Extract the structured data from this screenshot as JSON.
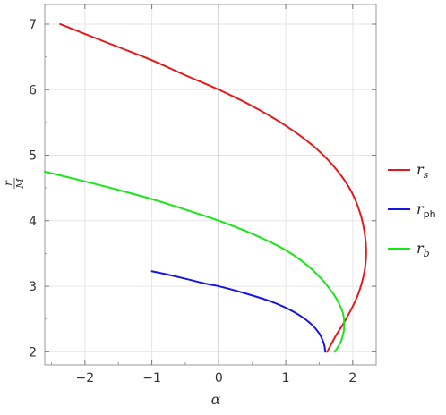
{
  "chart_data": {
    "type": "line",
    "title": "",
    "xlabel": "α",
    "ylabel_num": "r",
    "ylabel_den": "M",
    "xlim": [
      -2.6,
      2.35
    ],
    "ylim": [
      1.8,
      7.3
    ],
    "xticks": [
      -2,
      -1,
      0,
      1,
      2
    ],
    "yticks": [
      2,
      3,
      4,
      5,
      6,
      7
    ],
    "x_tick_labels": [
      "−2",
      "−1",
      "0",
      "1",
      "2"
    ],
    "y_tick_labels": [
      "2",
      "3",
      "4",
      "5",
      "6",
      "7"
    ],
    "grid": true,
    "legend_position": "right",
    "series": [
      {
        "legend_base": "r",
        "legend_sub": "s",
        "sub_italic": true,
        "color": "#e3191a",
        "points": [
          [
            -2.37,
            7.0
          ],
          [
            -2.0,
            6.85
          ],
          [
            -1.5,
            6.65
          ],
          [
            -1.0,
            6.45
          ],
          [
            -0.5,
            6.22
          ],
          [
            0.0,
            6.0
          ],
          [
            0.5,
            5.75
          ],
          [
            1.0,
            5.45
          ],
          [
            1.4,
            5.15
          ],
          [
            1.7,
            4.85
          ],
          [
            1.95,
            4.5
          ],
          [
            2.1,
            4.15
          ],
          [
            2.18,
            3.8
          ],
          [
            2.2,
            3.5
          ],
          [
            2.17,
            3.2
          ],
          [
            2.07,
            2.85
          ],
          [
            1.9,
            2.5
          ],
          [
            1.75,
            2.25
          ],
          [
            1.62,
            2.0
          ]
        ]
      },
      {
        "legend_base": "r",
        "legend_sub": "ph",
        "sub_italic": false,
        "color": "#1515e6",
        "points": [
          [
            -1.0,
            3.23
          ],
          [
            -0.6,
            3.14
          ],
          [
            -0.2,
            3.04
          ],
          [
            0.0,
            3.0
          ],
          [
            0.4,
            2.89
          ],
          [
            0.8,
            2.76
          ],
          [
            1.1,
            2.62
          ],
          [
            1.35,
            2.45
          ],
          [
            1.5,
            2.28
          ],
          [
            1.57,
            2.12
          ],
          [
            1.59,
            2.0
          ]
        ]
      },
      {
        "legend_base": "r",
        "legend_sub": "b",
        "sub_italic": true,
        "color": "#19e619",
        "points": [
          [
            -2.6,
            4.75
          ],
          [
            -2.0,
            4.6
          ],
          [
            -1.5,
            4.47
          ],
          [
            -1.0,
            4.33
          ],
          [
            -0.5,
            4.17
          ],
          [
            0.0,
            4.0
          ],
          [
            0.5,
            3.8
          ],
          [
            1.0,
            3.55
          ],
          [
            1.4,
            3.25
          ],
          [
            1.7,
            2.9
          ],
          [
            1.85,
            2.6
          ],
          [
            1.87,
            2.35
          ],
          [
            1.82,
            2.15
          ],
          [
            1.73,
            2.0
          ]
        ]
      }
    ]
  }
}
